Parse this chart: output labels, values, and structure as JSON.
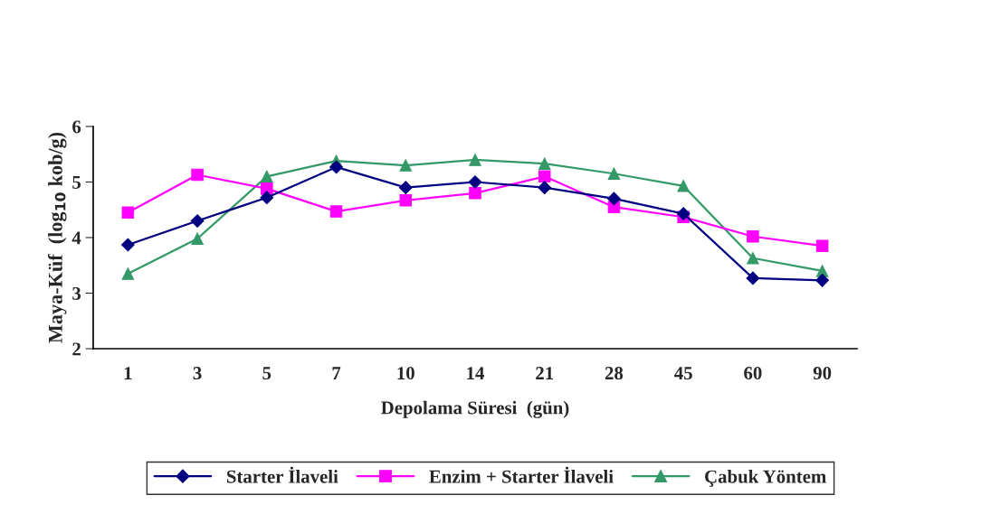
{
  "chart_data": {
    "type": "line",
    "xlabel": "Depolama Süresi  (gün)",
    "ylabel": "Maya-Küf  (log$_{10}$ kob/g)",
    "categories": [
      "1",
      "3",
      "5",
      "7",
      "10",
      "14",
      "21",
      "28",
      "45",
      "60",
      "90"
    ],
    "series": [
      {
        "name": "Starter İlaveli",
        "color": "#000080",
        "marker": "diamond",
        "values": [
          3.87,
          4.3,
          4.72,
          5.27,
          4.9,
          5.0,
          4.9,
          4.7,
          4.43,
          3.27,
          3.23
        ]
      },
      {
        "name": "Enzim + Starter İlaveli",
        "color": "#ff00ff",
        "marker": "square",
        "values": [
          4.45,
          5.13,
          4.88,
          4.47,
          4.67,
          4.8,
          5.1,
          4.55,
          4.37,
          4.02,
          3.85
        ]
      },
      {
        "name": "Çabuk Yöntem",
        "color": "#339966",
        "marker": "triangle",
        "values": [
          3.35,
          3.98,
          5.1,
          5.38,
          5.3,
          5.4,
          5.33,
          5.15,
          4.93,
          3.63,
          3.4
        ]
      }
    ],
    "ylim": [
      2,
      6
    ],
    "yticks": [
      2,
      3,
      4,
      5,
      6
    ],
    "grid": false,
    "legend": "bottom",
    "line_style": "solid"
  }
}
